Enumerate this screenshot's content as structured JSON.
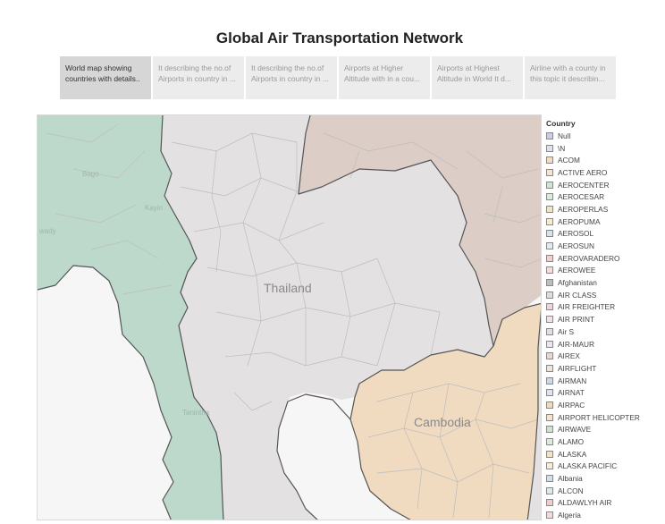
{
  "dashboard": {
    "title": "Global Air Transportation Network"
  },
  "tabs": [
    {
      "line1": "World map showing",
      "line2": "countries with details..",
      "active": true
    },
    {
      "line1": "It describing the no.of",
      "line2": "Airports in country in ...",
      "active": false
    },
    {
      "line1": "It describing the no.of",
      "line2": "Airports in country in ...",
      "active": false
    },
    {
      "line1": "Airports at Higher",
      "line2": "Altitude with in a cou...",
      "active": false
    },
    {
      "line1": "Airports at Highest",
      "line2": "Altitude in World It d...",
      "active": false
    },
    {
      "line1": "Airline with a county in",
      "line2": "this topic it describin...",
      "active": false
    }
  ],
  "map": {
    "country_labels": {
      "thailand": "Thailand",
      "cambodia": "Cambodia"
    },
    "faded_labels": {
      "bago": "Bago",
      "kayin": "Kayin",
      "ywady": "wady",
      "tanintha": "Tanintha"
    },
    "colors": {
      "myanmar": "#bcd9cc",
      "thailand": "#e3e1e1",
      "laos": "#dccdc7",
      "cambodia": "#f0dac0",
      "sea": "#f6f6f6",
      "border": "#555555",
      "province": "#bdbdbd"
    }
  },
  "legend": {
    "title": "Country",
    "items": [
      {
        "label": "Null",
        "color": "#c9cde8"
      },
      {
        "label": "\\N",
        "color": "#dbe3f2"
      },
      {
        "label": "ACOM",
        "color": "#f4dcc0"
      },
      {
        "label": "ACTIVE AERO",
        "color": "#f7e3d0"
      },
      {
        "label": "AEROCENTER",
        "color": "#cfe4d2"
      },
      {
        "label": "AEROCESAR",
        "color": "#d9ecdc"
      },
      {
        "label": "AEROPERLAS",
        "color": "#f1e6c4"
      },
      {
        "label": "AEROPUMA",
        "color": "#f5ebcf"
      },
      {
        "label": "AEROSOL",
        "color": "#d6e3ea"
      },
      {
        "label": "AEROSUN",
        "color": "#e2ecf0"
      },
      {
        "label": "AEROVARADERO",
        "color": "#f3cfcf"
      },
      {
        "label": "AEROWEE",
        "color": "#f6dcdc"
      },
      {
        "label": "Afghanistan",
        "color": "#bdbdbd"
      },
      {
        "label": "AIR CLASS",
        "color": "#dedede"
      },
      {
        "label": "AIR FREIGHTER",
        "color": "#f1d3d9"
      },
      {
        "label": "AIR PRINT",
        "color": "#f5e1e5"
      },
      {
        "label": "Air S",
        "color": "#e3dbe6"
      },
      {
        "label": "AIR-MAUR",
        "color": "#ebe5ee"
      },
      {
        "label": "AIREX",
        "color": "#e6d9ce"
      },
      {
        "label": "AIRFLIGHT",
        "color": "#eee4da"
      },
      {
        "label": "AIRMAN",
        "color": "#cdd8ea"
      },
      {
        "label": "AIRNAT",
        "color": "#dce4f0"
      },
      {
        "label": "AIRPAC",
        "color": "#f2d9bd"
      },
      {
        "label": "AIRPORT HELICOPTER",
        "color": "#f6e3cd"
      },
      {
        "label": "AIRWAVE",
        "color": "#cfe3cf"
      },
      {
        "label": "ALAMO",
        "color": "#dcecdc"
      },
      {
        "label": "ALASKA",
        "color": "#efe4c3"
      },
      {
        "label": "ALASKA PACIFIC",
        "color": "#f5ecd3"
      },
      {
        "label": "Albania",
        "color": "#d0e0e6"
      },
      {
        "label": "ALCON",
        "color": "#dde9ee"
      },
      {
        "label": "ALDAWLYH AIR",
        "color": "#f1cccc"
      },
      {
        "label": "Algeria",
        "color": "#f5dada"
      }
    ]
  }
}
